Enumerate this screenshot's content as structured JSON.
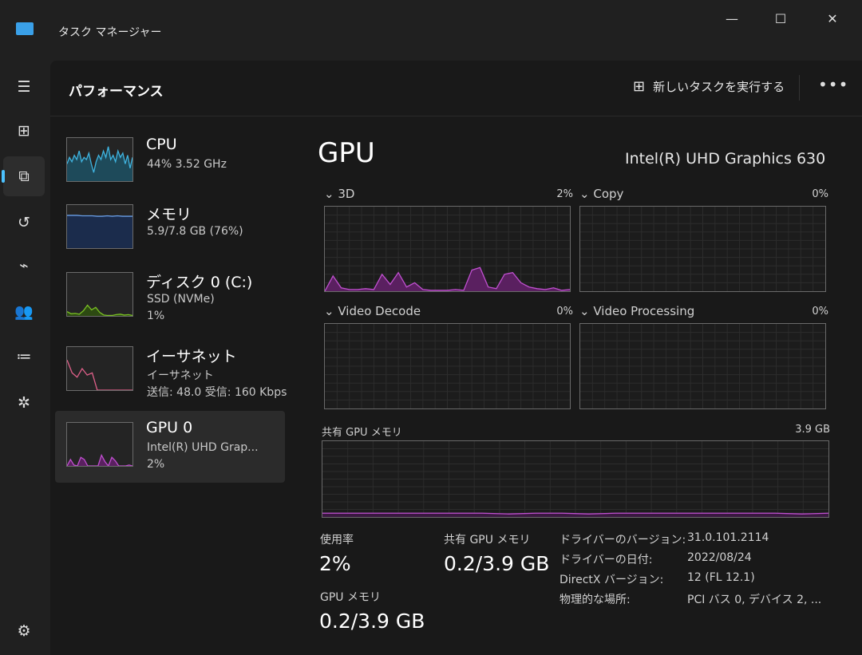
{
  "window": {
    "title": "タスク マネージャー",
    "minimize": "—",
    "maximize": "☐",
    "close": "✕"
  },
  "nav": [
    {
      "icon": "hamburger-icon",
      "glyph": "☰"
    },
    {
      "icon": "processes-icon",
      "glyph": "⊞"
    },
    {
      "icon": "performance-icon",
      "glyph": "⧉",
      "selected": true
    },
    {
      "icon": "app-history-icon",
      "glyph": "↺"
    },
    {
      "icon": "startup-icon",
      "glyph": "⌁"
    },
    {
      "icon": "users-icon",
      "glyph": "👥"
    },
    {
      "icon": "details-icon",
      "glyph": "≔"
    },
    {
      "icon": "services-icon",
      "glyph": "✲"
    },
    {
      "icon": "settings-icon",
      "glyph": "⚙"
    }
  ],
  "header": {
    "title": "パフォーマンス",
    "new_task": "新しいタスクを実行する",
    "more": "•••"
  },
  "sidebar": [
    {
      "title": "CPU",
      "sub1": "44%  3.52 GHz",
      "sub2": "",
      "color": "#3fb4e0",
      "fill": "#1e4a5a",
      "values": [
        40,
        55,
        45,
        60,
        50,
        70,
        45,
        55,
        50,
        65,
        40,
        20,
        45,
        60,
        50,
        70,
        55,
        80,
        50,
        60,
        45,
        70,
        55,
        65,
        40,
        60,
        30,
        55
      ]
    },
    {
      "title": "メモリ",
      "sub1": "5.9/7.8 GB (76%)",
      "sub2": "",
      "color": "#6a9fe8",
      "fill": "#1b2c4c",
      "values": [
        76,
        76,
        76,
        75,
        75,
        75,
        74,
        74,
        75,
        74,
        75,
        74,
        74,
        74
      ]
    },
    {
      "title": "ディスク 0 (C:)",
      "sub1": "SSD (NVMe)",
      "sub2": "1%",
      "color": "#7ac123",
      "fill": "#2d4a12",
      "values": [
        10,
        5,
        6,
        4,
        12,
        25,
        14,
        20,
        8,
        2,
        1,
        1,
        3,
        4,
        2,
        3,
        1
      ]
    },
    {
      "title": "イーサネット",
      "sub1": "イーサネット",
      "sub2": "送信: 48.0 受信: 160 Kbps",
      "color": "#e0608a",
      "fill": "none",
      "values": [
        70,
        40,
        30,
        50,
        35,
        40,
        0,
        0,
        0,
        0,
        0,
        0,
        0,
        0
      ]
    },
    {
      "title": "GPU 0",
      "sub1": "Intel(R) UHD Grap...",
      "sub2": "2%",
      "color": "#c050d0",
      "fill": "#5a2060",
      "values": [
        0,
        15,
        2,
        0,
        20,
        15,
        0,
        0,
        0,
        0,
        25,
        10,
        0,
        20,
        12,
        0,
        0,
        0,
        2,
        0
      ],
      "selected": true
    }
  ],
  "main": {
    "title": "GPU",
    "device": "Intel(R) UHD Graphics 630",
    "engines": [
      {
        "label": "3D",
        "pct": "2%",
        "values": [
          0,
          18,
          4,
          2,
          2,
          3,
          2,
          20,
          8,
          22,
          5,
          10,
          2,
          1,
          1,
          1,
          2,
          1,
          25,
          28,
          5,
          3,
          20,
          22,
          10,
          5,
          3,
          2,
          4,
          1,
          2
        ]
      },
      {
        "label": "Copy",
        "pct": "0%",
        "values": []
      },
      {
        "label": "Video Decode",
        "pct": "0%",
        "values": []
      },
      {
        "label": "Video Processing",
        "pct": "0%",
        "values": []
      }
    ],
    "shared": {
      "label": "共有 GPU メモリ",
      "max": "3.9 GB",
      "values": [
        5,
        5,
        5,
        5,
        5,
        5,
        5,
        4,
        5,
        5,
        4,
        5,
        5,
        5,
        5,
        5,
        5,
        5,
        4,
        5
      ]
    },
    "stats": {
      "usage_label": "使用率",
      "usage": "2%",
      "shared_label": "共有 GPU メモリ",
      "shared": "0.2/3.9 GB",
      "mem_label": "GPU メモリ",
      "mem": "0.2/3.9 GB"
    },
    "details": [
      {
        "k": "ドライバーのバージョン:",
        "v": "31.0.101.2114"
      },
      {
        "k": "ドライバーの日付:",
        "v": "2022/08/24"
      },
      {
        "k": "DirectX バージョン:",
        "v": "12 (FL 12.1)"
      },
      {
        "k": "物理的な場所:",
        "v": "PCI バス 0, デバイス 2, ..."
      }
    ]
  },
  "colors": {
    "accent": "#4cc2ff",
    "gpu": "#c050d0"
  }
}
